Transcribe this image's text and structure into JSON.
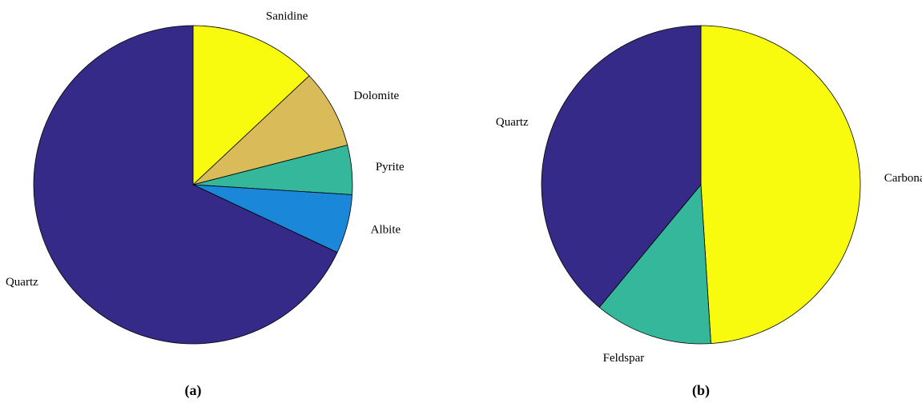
{
  "chart_data": [
    {
      "type": "pie",
      "caption": "(a)",
      "categories": [
        "Sanidine",
        "Dolomite",
        "Pyrite",
        "Albite",
        "Quartz"
      ],
      "values": [
        13,
        8,
        5,
        6,
        68
      ],
      "colors": [
        "#f9fb0e",
        "#d9bb59",
        "#35b79c",
        "#1b87d8",
        "#352a87"
      ]
    },
    {
      "type": "pie",
      "caption": "(b)",
      "categories": [
        "Carbonate",
        "Feldspar",
        "Quartz"
      ],
      "values": [
        49,
        12,
        39
      ],
      "colors": [
        "#f9fb0e",
        "#35b79c",
        "#352a87"
      ]
    }
  ]
}
